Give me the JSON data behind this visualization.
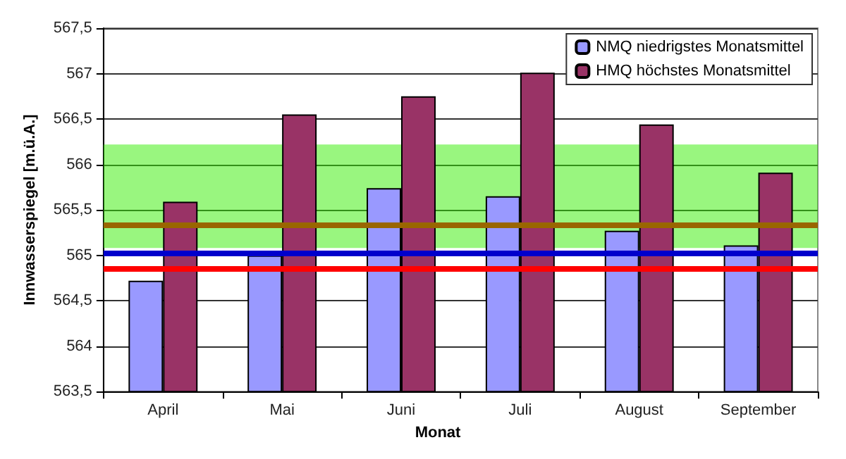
{
  "chart_data": {
    "type": "bar",
    "xlabel": "Monat",
    "ylabel": "Innwasserspiegel [m.ü.A.]",
    "categories": [
      "April",
      "Mai",
      "Juni",
      "Juli",
      "August",
      "September"
    ],
    "series": [
      {
        "name": "NMQ niedrigstes Monatsmittel",
        "color": "#9999ff",
        "values": [
          564.72,
          565.0,
          565.74,
          565.65,
          565.27,
          565.11
        ]
      },
      {
        "name": "HMQ höchstes Monatsmittel",
        "color": "#993366",
        "values": [
          565.59,
          566.55,
          566.75,
          567.01,
          566.44,
          565.91
        ]
      }
    ],
    "ylim": [
      563.5,
      567.5
    ],
    "yticks": [
      {
        "value": 563.5,
        "label": "563,5"
      },
      {
        "value": 564,
        "label": "564"
      },
      {
        "value": 564.5,
        "label": "564,5"
      },
      {
        "value": 565,
        "label": "565"
      },
      {
        "value": 565.5,
        "label": "565,5"
      },
      {
        "value": 566,
        "label": "566"
      },
      {
        "value": 566.5,
        "label": "566,5"
      },
      {
        "value": 567,
        "label": "567"
      },
      {
        "value": 567.5,
        "label": "567,5"
      }
    ],
    "grid": "y",
    "legend": "top right",
    "bands": [
      {
        "axis": "y",
        "from": 565.08,
        "to": 566.22,
        "color": "#33ee00"
      }
    ],
    "ref_lines": [
      {
        "axis": "y",
        "value": 565.34,
        "color": "#996600"
      },
      {
        "axis": "y",
        "value": 565.02,
        "color": "#0000cc"
      },
      {
        "axis": "y",
        "value": 564.85,
        "color": "#ff0000"
      }
    ]
  }
}
